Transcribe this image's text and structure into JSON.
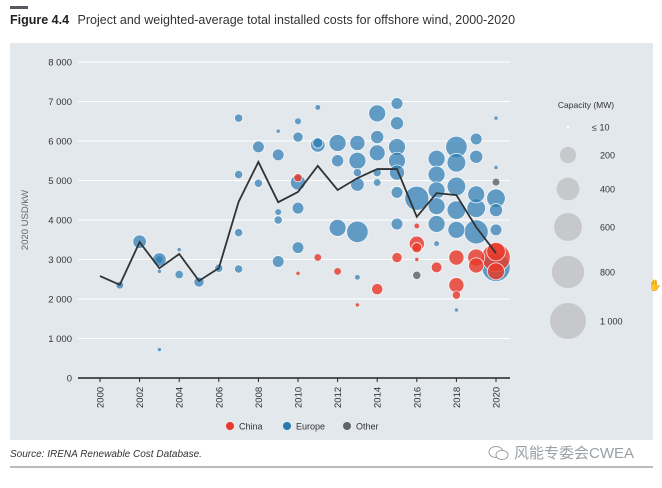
{
  "header": {
    "figure_number": "Figure 4.4",
    "title": "Project and weighted-average total installed costs for offshore wind, 2000-2020"
  },
  "footer": {
    "source": "Source: IRENA Renewable Cost Database.",
    "watermark": "风能专委会CWEA"
  },
  "colors": {
    "China": "#e8392b",
    "Europe": "#2a7ab0",
    "Other": "#5f6368",
    "line": "#2f3437",
    "background": "#e3e8ed",
    "size_legend": "#c6c8cb"
  },
  "chart_data": {
    "type": "scatter",
    "title": "Project and weighted-average total installed costs for offshore wind, 2000-2020",
    "xlabel": "",
    "ylabel": "2020 USD/kW",
    "xlim": [
      2000,
      2020
    ],
    "ylim": [
      0,
      8000
    ],
    "x_ticks": [
      "2000",
      "2002",
      "2004",
      "2006",
      "2008",
      "2010",
      "2012",
      "2014",
      "2016",
      "2018",
      "2020"
    ],
    "y_ticks": [
      "0",
      "1 000",
      "2 000",
      "3 000",
      "4 000",
      "5 000",
      "6 000",
      "7 000",
      "8 000"
    ],
    "y_tick_values": [
      0,
      1000,
      2000,
      3000,
      4000,
      5000,
      6000,
      7000,
      8000
    ],
    "grid": true,
    "legend": {
      "placement": "bottom",
      "entries": [
        "China",
        "Europe",
        "Other"
      ]
    },
    "size_legend": {
      "title": "Capacity (MW)",
      "placement": "right",
      "entries": [
        {
          "label": "≤ 10",
          "value": 10
        },
        {
          "label": "200",
          "value": 200
        },
        {
          "label": "400",
          "value": 400
        },
        {
          "label": "600",
          "value": 600
        },
        {
          "label": "800",
          "value": 800
        },
        {
          "label": "1 000",
          "value": 1000
        }
      ]
    },
    "weighted_average": {
      "name": "Weighted average",
      "x": [
        2000,
        2001,
        2002,
        2003,
        2004,
        2005,
        2006,
        2007,
        2008,
        2009,
        2010,
        2011,
        2012,
        2013,
        2014,
        2015,
        2016,
        2017,
        2018,
        2019,
        2020
      ],
      "y": [
        2580,
        2360,
        3440,
        2780,
        3140,
        2460,
        2780,
        4460,
        5470,
        4450,
        4710,
        5370,
        4760,
        5060,
        5290,
        5290,
        4080,
        4680,
        4630,
        3820,
        3160
      ]
    },
    "projects": [
      {
        "year": 2001,
        "cost": 2350,
        "mw": 40,
        "region": "Europe"
      },
      {
        "year": 2002,
        "cost": 3450,
        "mw": 160,
        "region": "Europe"
      },
      {
        "year": 2003,
        "cost": 3000,
        "mw": 160,
        "region": "Europe"
      },
      {
        "year": 2003,
        "cost": 3000,
        "mw": 40,
        "region": "Europe"
      },
      {
        "year": 2003,
        "cost": 2700,
        "mw": 10,
        "region": "Europe"
      },
      {
        "year": 2003,
        "cost": 720,
        "mw": 10,
        "region": "Europe"
      },
      {
        "year": 2004,
        "cost": 3250,
        "mw": 10,
        "region": "Europe"
      },
      {
        "year": 2004,
        "cost": 2620,
        "mw": 50,
        "region": "Europe"
      },
      {
        "year": 2005,
        "cost": 2430,
        "mw": 90,
        "region": "Europe"
      },
      {
        "year": 2006,
        "cost": 2780,
        "mw": 60,
        "region": "Europe"
      },
      {
        "year": 2007,
        "cost": 6580,
        "mw": 60,
        "region": "Europe"
      },
      {
        "year": 2007,
        "cost": 5150,
        "mw": 60,
        "region": "Europe"
      },
      {
        "year": 2007,
        "cost": 3680,
        "mw": 60,
        "region": "Europe"
      },
      {
        "year": 2007,
        "cost": 2760,
        "mw": 60,
        "region": "Europe"
      },
      {
        "year": 2008,
        "cost": 5850,
        "mw": 120,
        "region": "Europe"
      },
      {
        "year": 2008,
        "cost": 4930,
        "mw": 60,
        "region": "Europe"
      },
      {
        "year": 2009,
        "cost": 6250,
        "mw": 10,
        "region": "Europe"
      },
      {
        "year": 2009,
        "cost": 5650,
        "mw": 120,
        "region": "Europe"
      },
      {
        "year": 2009,
        "cost": 4200,
        "mw": 30,
        "region": "Europe"
      },
      {
        "year": 2009,
        "cost": 4000,
        "mw": 60,
        "region": "Europe"
      },
      {
        "year": 2009,
        "cost": 2950,
        "mw": 120,
        "region": "Europe"
      },
      {
        "year": 2010,
        "cost": 6500,
        "mw": 30,
        "region": "Europe"
      },
      {
        "year": 2010,
        "cost": 6100,
        "mw": 90,
        "region": "Europe"
      },
      {
        "year": 2010,
        "cost": 4950,
        "mw": 200,
        "region": "Europe"
      },
      {
        "year": 2010,
        "cost": 5070,
        "mw": 60,
        "region": "China"
      },
      {
        "year": 2010,
        "cost": 4300,
        "mw": 120,
        "region": "Europe"
      },
      {
        "year": 2010,
        "cost": 3300,
        "mw": 120,
        "region": "Europe"
      },
      {
        "year": 2010,
        "cost": 2650,
        "mw": 10,
        "region": "China"
      },
      {
        "year": 2011,
        "cost": 6850,
        "mw": 20,
        "region": "Europe"
      },
      {
        "year": 2011,
        "cost": 5900,
        "mw": 180,
        "region": "Europe"
      },
      {
        "year": 2011,
        "cost": 5950,
        "mw": 90,
        "region": "Europe"
      },
      {
        "year": 2011,
        "cost": 3050,
        "mw": 40,
        "region": "China"
      },
      {
        "year": 2012,
        "cost": 5950,
        "mw": 250,
        "region": "Europe"
      },
      {
        "year": 2012,
        "cost": 5500,
        "mw": 130,
        "region": "Europe"
      },
      {
        "year": 2012,
        "cost": 3800,
        "mw": 250,
        "region": "Europe"
      },
      {
        "year": 2012,
        "cost": 2700,
        "mw": 40,
        "region": "China"
      },
      {
        "year": 2013,
        "cost": 5950,
        "mw": 200,
        "region": "Europe"
      },
      {
        "year": 2013,
        "cost": 5500,
        "mw": 250,
        "region": "Europe"
      },
      {
        "year": 2013,
        "cost": 5200,
        "mw": 60,
        "region": "Europe"
      },
      {
        "year": 2013,
        "cost": 4900,
        "mw": 160,
        "region": "Europe"
      },
      {
        "year": 2013,
        "cost": 3700,
        "mw": 400,
        "region": "Europe"
      },
      {
        "year": 2013,
        "cost": 2550,
        "mw": 20,
        "region": "Europe"
      },
      {
        "year": 2013,
        "cost": 1850,
        "mw": 10,
        "region": "China"
      },
      {
        "year": 2014,
        "cost": 6700,
        "mw": 250,
        "region": "Europe"
      },
      {
        "year": 2014,
        "cost": 6100,
        "mw": 150,
        "region": "Europe"
      },
      {
        "year": 2014,
        "cost": 5700,
        "mw": 220,
        "region": "Europe"
      },
      {
        "year": 2014,
        "cost": 5200,
        "mw": 60,
        "region": "Europe"
      },
      {
        "year": 2014,
        "cost": 4950,
        "mw": 40,
        "region": "Europe"
      },
      {
        "year": 2014,
        "cost": 2250,
        "mw": 110,
        "region": "China"
      },
      {
        "year": 2015,
        "cost": 6950,
        "mw": 120,
        "region": "Europe"
      },
      {
        "year": 2015,
        "cost": 6450,
        "mw": 150,
        "region": "Europe"
      },
      {
        "year": 2015,
        "cost": 5850,
        "mw": 250,
        "region": "Europe"
      },
      {
        "year": 2015,
        "cost": 5500,
        "mw": 250,
        "region": "Europe"
      },
      {
        "year": 2015,
        "cost": 5200,
        "mw": 200,
        "region": "Europe"
      },
      {
        "year": 2015,
        "cost": 4700,
        "mw": 120,
        "region": "Europe"
      },
      {
        "year": 2015,
        "cost": 3900,
        "mw": 120,
        "region": "Europe"
      },
      {
        "year": 2015,
        "cost": 3050,
        "mw": 90,
        "region": "China"
      },
      {
        "year": 2016,
        "cost": 4550,
        "mw": 500,
        "region": "Europe"
      },
      {
        "year": 2016,
        "cost": 3850,
        "mw": 20,
        "region": "China"
      },
      {
        "year": 2016,
        "cost": 3400,
        "mw": 200,
        "region": "China"
      },
      {
        "year": 2016,
        "cost": 3300,
        "mw": 90,
        "region": "China"
      },
      {
        "year": 2016,
        "cost": 2600,
        "mw": 60,
        "region": "Other"
      },
      {
        "year": 2016,
        "cost": 3000,
        "mw": 10,
        "region": "China"
      },
      {
        "year": 2017,
        "cost": 5550,
        "mw": 250,
        "region": "Europe"
      },
      {
        "year": 2017,
        "cost": 5150,
        "mw": 250,
        "region": "Europe"
      },
      {
        "year": 2017,
        "cost": 4750,
        "mw": 250,
        "region": "Europe"
      },
      {
        "year": 2017,
        "cost": 4350,
        "mw": 250,
        "region": "Europe"
      },
      {
        "year": 2017,
        "cost": 3900,
        "mw": 250,
        "region": "Europe"
      },
      {
        "year": 2017,
        "cost": 3400,
        "mw": 20,
        "region": "Europe"
      },
      {
        "year": 2017,
        "cost": 2800,
        "mw": 100,
        "region": "China"
      },
      {
        "year": 2018,
        "cost": 5850,
        "mw": 400,
        "region": "Europe"
      },
      {
        "year": 2018,
        "cost": 5450,
        "mw": 300,
        "region": "Europe"
      },
      {
        "year": 2018,
        "cost": 4850,
        "mw": 300,
        "region": "Europe"
      },
      {
        "year": 2018,
        "cost": 4250,
        "mw": 300,
        "region": "Europe"
      },
      {
        "year": 2018,
        "cost": 3750,
        "mw": 250,
        "region": "Europe"
      },
      {
        "year": 2018,
        "cost": 3050,
        "mw": 200,
        "region": "China"
      },
      {
        "year": 2018,
        "cost": 2350,
        "mw": 200,
        "region": "China"
      },
      {
        "year": 2018,
        "cost": 2100,
        "mw": 60,
        "region": "China"
      },
      {
        "year": 2018,
        "cost": 1720,
        "mw": 10,
        "region": "Europe"
      },
      {
        "year": 2019,
        "cost": 6050,
        "mw": 120,
        "region": "Europe"
      },
      {
        "year": 2019,
        "cost": 5600,
        "mw": 150,
        "region": "Europe"
      },
      {
        "year": 2019,
        "cost": 4650,
        "mw": 250,
        "region": "Europe"
      },
      {
        "year": 2019,
        "cost": 4300,
        "mw": 300,
        "region": "Europe"
      },
      {
        "year": 2019,
        "cost": 3700,
        "mw": 500,
        "region": "Europe"
      },
      {
        "year": 2019,
        "cost": 3050,
        "mw": 250,
        "region": "China"
      },
      {
        "year": 2019,
        "cost": 2850,
        "mw": 200,
        "region": "China"
      },
      {
        "year": 2020,
        "cost": 6580,
        "mw": 10,
        "region": "Europe"
      },
      {
        "year": 2020,
        "cost": 5330,
        "mw": 10,
        "region": "Europe"
      },
      {
        "year": 2020,
        "cost": 4960,
        "mw": 40,
        "region": "Other"
      },
      {
        "year": 2020,
        "cost": 4550,
        "mw": 300,
        "region": "Europe"
      },
      {
        "year": 2020,
        "cost": 4250,
        "mw": 150,
        "region": "Europe"
      },
      {
        "year": 2020,
        "cost": 3750,
        "mw": 120,
        "region": "Europe"
      },
      {
        "year": 2020,
        "cost": 2800,
        "mw": 700,
        "region": "Europe"
      },
      {
        "year": 2020,
        "cost": 3050,
        "mw": 700,
        "region": "China"
      },
      {
        "year": 2020,
        "cost": 2700,
        "mw": 250,
        "region": "China"
      },
      {
        "year": 2020,
        "cost": 3200,
        "mw": 300,
        "region": "China"
      }
    ]
  }
}
